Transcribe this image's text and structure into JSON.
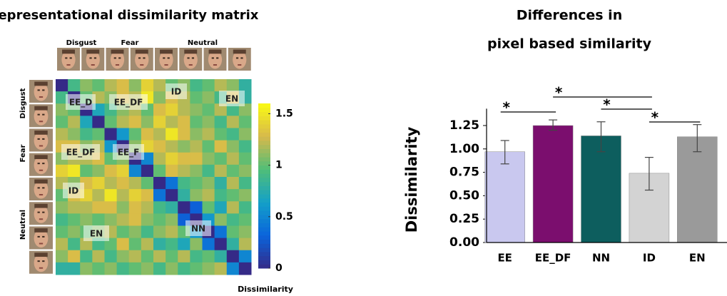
{
  "chart_data": [
    {
      "type": "heatmap",
      "title": "Representational dissimilarity matrix",
      "column_groups": [
        "Disgust",
        "Fear",
        "Neutral"
      ],
      "row_groups": [
        "Disgust",
        "Fear",
        "Neutral"
      ],
      "annotations": [
        "EE_D",
        "EE_DF",
        "ID",
        "EN",
        "EE_DF",
        "EE_F",
        "ID",
        "EN",
        "NN"
      ],
      "values": [
        [
          0,
          0.9,
          1.1,
          1.0,
          1.2,
          1.3,
          1.1,
          1.4,
          1.2,
          1.0,
          1.1,
          0.9,
          1.0,
          1.2,
          1.1,
          0.8
        ],
        [
          0.9,
          0,
          1.0,
          1.2,
          1.1,
          1.3,
          1.2,
          1.5,
          1.1,
          1.3,
          1.2,
          1.0,
          1.1,
          0.9,
          1.3,
          0.8
        ],
        [
          1.1,
          1.0,
          0,
          0.7,
          0.9,
          1.1,
          1.2,
          1.0,
          1.3,
          1.4,
          1.2,
          1.1,
          1.0,
          1.2,
          0.9,
          1.1
        ],
        [
          1.0,
          1.2,
          0.7,
          0,
          1.0,
          1.2,
          1.3,
          1.1,
          1.4,
          1.2,
          1.3,
          1.0,
          1.1,
          0.9,
          1.2,
          1.0
        ],
        [
          1.2,
          1.1,
          0.9,
          1.0,
          0,
          0.6,
          1.0,
          1.3,
          1.2,
          1.5,
          1.3,
          1.1,
          1.2,
          1.0,
          0.9,
          1.1
        ],
        [
          1.3,
          1.3,
          1.1,
          1.2,
          0.6,
          0,
          1.1,
          1.4,
          1.3,
          1.2,
          1.1,
          1.2,
          1.0,
          1.3,
          1.1,
          0.9
        ],
        [
          1.1,
          1.2,
          1.2,
          1.3,
          1.0,
          1.1,
          0,
          0.5,
          1.2,
          1.4,
          1.3,
          1.3,
          1.1,
          1.0,
          1.2,
          1.0
        ],
        [
          1.4,
          1.5,
          1.0,
          1.1,
          1.3,
          1.4,
          0.5,
          0,
          1.0,
          1.3,
          1.2,
          1.1,
          0.9,
          1.2,
          1.0,
          1.1
        ],
        [
          1.2,
          1.1,
          1.3,
          1.4,
          1.2,
          1.3,
          1.2,
          1.0,
          0,
          0.4,
          0.9,
          1.0,
          1.1,
          0.8,
          1.2,
          0.9
        ],
        [
          1.0,
          1.3,
          1.4,
          1.2,
          1.5,
          1.2,
          1.4,
          1.3,
          0.4,
          0,
          0.8,
          1.1,
          1.2,
          0.9,
          1.0,
          1.1
        ],
        [
          1.1,
          1.2,
          1.2,
          1.3,
          1.3,
          1.1,
          1.3,
          1.2,
          0.9,
          0.8,
          0,
          0.3,
          1.0,
          0.7,
          1.2,
          0.9
        ],
        [
          0.9,
          1.0,
          1.1,
          1.0,
          1.1,
          1.2,
          1.3,
          1.1,
          1.0,
          1.1,
          0.3,
          0,
          0.6,
          1.1,
          0.9,
          1.0
        ],
        [
          1.0,
          1.1,
          1.0,
          1.1,
          1.2,
          1.0,
          1.1,
          0.9,
          1.1,
          1.2,
          1.0,
          0.6,
          0,
          0.4,
          1.0,
          1.1
        ],
        [
          1.2,
          0.9,
          1.2,
          0.9,
          1.0,
          1.3,
          1.0,
          1.2,
          0.8,
          0.9,
          0.7,
          1.1,
          0.4,
          0,
          0.8,
          1.2
        ],
        [
          1.1,
          1.3,
          0.9,
          1.2,
          0.9,
          1.1,
          1.2,
          1.0,
          1.2,
          1.0,
          1.2,
          0.9,
          1.0,
          0.8,
          0,
          0.5
        ],
        [
          0.8,
          0.8,
          1.1,
          1.0,
          1.1,
          0.9,
          1.0,
          1.1,
          0.9,
          1.1,
          0.9,
          1.0,
          1.1,
          1.2,
          0.5,
          0
        ]
      ],
      "colorbar_label": "Dissimilarity",
      "clim": [
        0,
        1.6
      ],
      "colorbar_ticks": [
        0,
        0.5,
        1,
        1.5
      ]
    },
    {
      "type": "bar",
      "title": [
        "Differences in",
        "pixel based similarity"
      ],
      "ylabel": "Dissimilarity",
      "categories": [
        "EE",
        "EE_DF",
        "NN",
        "ID",
        "EN"
      ],
      "values": [
        0.97,
        1.25,
        1.14,
        0.74,
        1.13
      ],
      "error_low": [
        0.84,
        1.2,
        0.97,
        0.56,
        0.97
      ],
      "error_high": [
        1.09,
        1.31,
        1.29,
        0.91,
        1.26
      ],
      "colors": [
        "#c9c8ef",
        "#7b0e6e",
        "#0d5e5e",
        "#d3d3d3",
        "#9a9a9a"
      ],
      "ylim": [
        0,
        1.4
      ],
      "yticks": [
        {
          "value": 0,
          "label": "0.00"
        },
        {
          "value": 0.25,
          "label": "0.25"
        },
        {
          "value": 0.5,
          "label": "0.50"
        },
        {
          "value": 0.75,
          "label": "0.75"
        },
        {
          "value": 1,
          "label": "1.00"
        },
        {
          "value": 1.25,
          "label": "1.25"
        }
      ],
      "comparisons": [
        {
          "pair": [
            0,
            1
          ],
          "label": "*"
        },
        {
          "pair": [
            1,
            3
          ],
          "label": "*"
        },
        {
          "pair": [
            2,
            3
          ],
          "label": "*"
        },
        {
          "pair": [
            3,
            4
          ],
          "label": "*"
        }
      ]
    }
  ]
}
